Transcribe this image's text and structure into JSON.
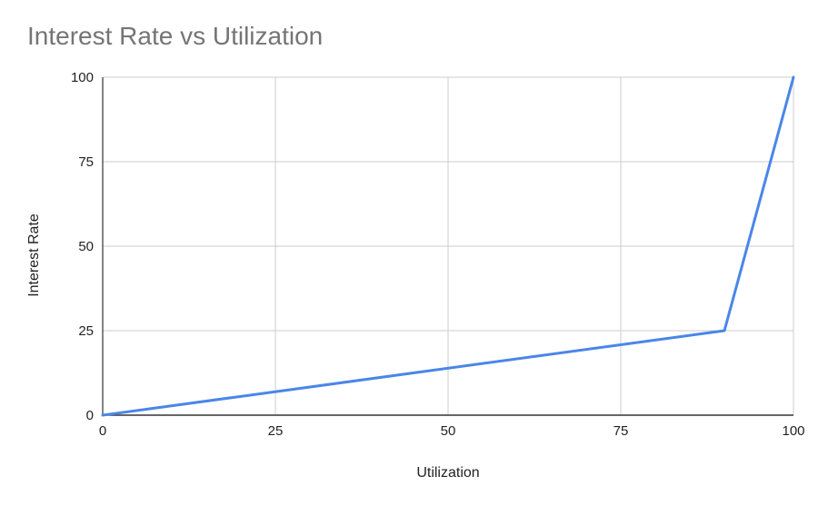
{
  "chart_data": {
    "type": "line",
    "title": "Interest Rate vs Utilization",
    "xlabel": "Utilization",
    "ylabel": "Interest Rate",
    "xlim": [
      0,
      100
    ],
    "ylim": [
      0,
      100
    ],
    "xticks": [
      "0",
      "25",
      "50",
      "75",
      "100"
    ],
    "yticks": [
      "0",
      "25",
      "50",
      "75",
      "100"
    ],
    "grid": true,
    "legend": "none",
    "series": [
      {
        "color": "#4a86e8",
        "points": [
          {
            "x": 0,
            "y": 0
          },
          {
            "x": 90,
            "y": 25
          },
          {
            "x": 100,
            "y": 100
          }
        ]
      }
    ]
  }
}
